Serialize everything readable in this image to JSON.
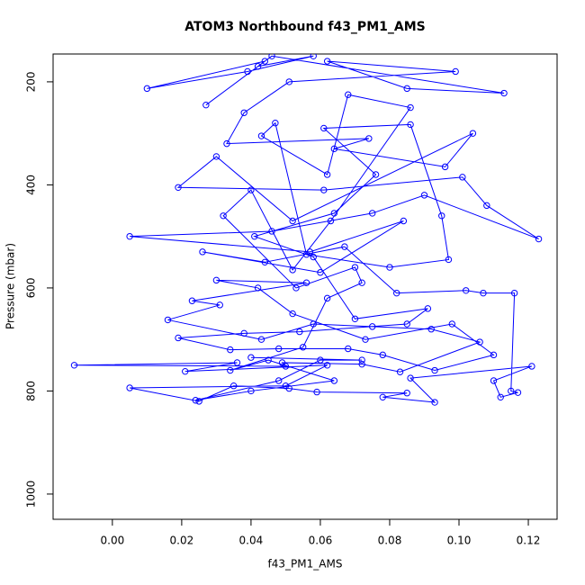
{
  "chart_data": {
    "type": "line",
    "title": "ATOM3 Northbound f43_PM1_AMS",
    "x_label": "f43_PM1_AMS",
    "y_label": "Pressure (mbar)",
    "color": "#0000ff",
    "marker": "circle",
    "xlim": [
      -0.0171,
      0.1283
    ],
    "ylim": [
      1049,
      146
    ],
    "xticks": [
      {
        "value": 0,
        "label": "0.00"
      },
      0.02,
      0.04,
      0.06,
      0.08,
      {
        "value": 0.1,
        "label": "0.10"
      },
      0.12
    ],
    "yticks": [
      200,
      400,
      600,
      800,
      1000
    ],
    "x": [
      0.044,
      0.01,
      0.039,
      0.058,
      0.042,
      0.027,
      0.046,
      0.113,
      0.085,
      0.062,
      0.099,
      0.051,
      0.038,
      0.033,
      0.074,
      0.064,
      0.096,
      0.104,
      0.052,
      0.03,
      0.019,
      0.061,
      0.101,
      0.108,
      0.123,
      0.09,
      0.075,
      0.046,
      0.005,
      0.057,
      0.084,
      0.06,
      0.026,
      0.044,
      0.067,
      0.082,
      0.102,
      0.107,
      0.116,
      0.115,
      0.117,
      0.112,
      0.11,
      0.121,
      0.086,
      0.093,
      0.078,
      0.085,
      0.059,
      0.051,
      0.035,
      0.025,
      0.005,
      0.05,
      0.062,
      0.021,
      0.036,
      -0.011,
      0.05,
      0.049,
      0.072,
      0.083,
      0.106,
      0.092,
      0.075,
      0.058,
      0.043,
      0.016,
      0.031,
      0.023,
      0.056,
      0.03,
      0.042,
      0.052,
      0.073,
      0.098,
      0.11,
      0.093,
      0.078,
      0.068,
      0.048,
      0.034,
      0.019,
      0.038,
      0.054,
      0.085,
      0.091,
      0.07,
      0.058,
      0.041,
      0.064,
      0.076,
      0.061,
      0.086,
      0.095,
      0.097,
      0.08,
      0.056,
      0.047,
      0.043,
      0.062,
      0.068,
      0.086,
      0.063,
      0.052,
      0.04,
      0.032,
      0.053,
      0.07,
      0.072,
      0.062,
      0.055,
      0.034,
      0.045,
      0.064,
      0.04,
      0.024,
      0.048,
      0.06,
      0.072,
      0.04
    ],
    "values": [
      160,
      213,
      180,
      150,
      170,
      245,
      150,
      222,
      213,
      160,
      180,
      200,
      260,
      320,
      310,
      330,
      365,
      300,
      470,
      345,
      405,
      410,
      385,
      440,
      505,
      420,
      455,
      490,
      500,
      530,
      470,
      570,
      530,
      550,
      520,
      610,
      605,
      610,
      610,
      800,
      803,
      812,
      780,
      752,
      775,
      822,
      812,
      804,
      802,
      795,
      790,
      820,
      794,
      790,
      750,
      762,
      745,
      750,
      752,
      745,
      748,
      763,
      705,
      680,
      675,
      670,
      700,
      662,
      633,
      625,
      590,
      585,
      600,
      650,
      700,
      670,
      730,
      760,
      730,
      718,
      718,
      720,
      697,
      688,
      685,
      670,
      640,
      660,
      540,
      500,
      455,
      380,
      290,
      283,
      460,
      545,
      560,
      535,
      280,
      305,
      380,
      225,
      250,
      470,
      565,
      410,
      460,
      600,
      560,
      590,
      620,
      715,
      760,
      740,
      780,
      800,
      818,
      780,
      740,
      740,
      735
    ]
  }
}
